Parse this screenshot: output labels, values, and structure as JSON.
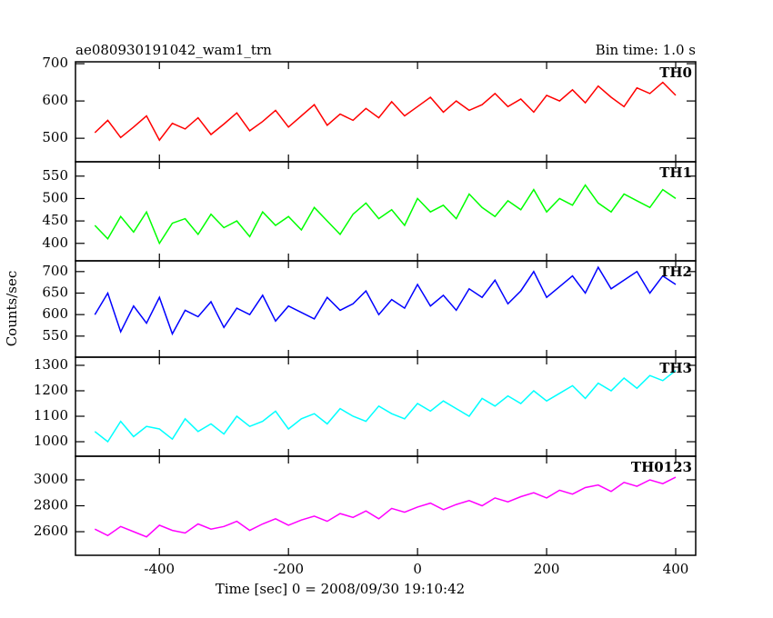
{
  "chart_data": [
    {
      "type": "line",
      "title": "ae080930191042_wam1_trn",
      "subtitle": "Bin time: 1.0 s",
      "xlim": [
        -530,
        431
      ],
      "ylim": [
        437,
        705
      ],
      "yticks": [
        500,
        600,
        700
      ],
      "x": [
        -500,
        -480,
        -460,
        -440,
        -420,
        -400,
        -380,
        -360,
        -340,
        -320,
        -300,
        -280,
        -260,
        -240,
        -220,
        -200,
        -180,
        -160,
        -140,
        -120,
        -100,
        -80,
        -60,
        -40,
        -20,
        0,
        20,
        40,
        60,
        80,
        100,
        120,
        140,
        160,
        180,
        200,
        220,
        240,
        260,
        280,
        300,
        320,
        340,
        360,
        380,
        400
      ],
      "series": [
        {
          "name": "TH0",
          "color": "#ff0000",
          "values": [
            515,
            548,
            502,
            530,
            560,
            495,
            540,
            525,
            555,
            510,
            538,
            568,
            520,
            545,
            575,
            530,
            560,
            590,
            535,
            565,
            548,
            580,
            555,
            598,
            560,
            585,
            610,
            570,
            600,
            575,
            590,
            620,
            585,
            605,
            570,
            615,
            600,
            630,
            595,
            640,
            610,
            585,
            635,
            620,
            650,
            615
          ]
        }
      ]
    },
    {
      "type": "line",
      "xlim": [
        -530,
        431
      ],
      "ylim": [
        361,
        582
      ],
      "yticks": [
        400,
        450,
        500,
        550
      ],
      "x": [
        -500,
        -480,
        -460,
        -440,
        -420,
        -400,
        -380,
        -360,
        -340,
        -320,
        -300,
        -280,
        -260,
        -240,
        -220,
        -200,
        -180,
        -160,
        -140,
        -120,
        -100,
        -80,
        -60,
        -40,
        -20,
        0,
        20,
        40,
        60,
        80,
        100,
        120,
        140,
        160,
        180,
        200,
        220,
        240,
        260,
        280,
        300,
        320,
        340,
        360,
        380,
        400
      ],
      "series": [
        {
          "name": "TH1",
          "color": "#00ff00",
          "values": [
            440,
            410,
            460,
            425,
            470,
            400,
            445,
            455,
            420,
            465,
            435,
            450,
            415,
            470,
            440,
            460,
            430,
            480,
            450,
            420,
            465,
            490,
            455,
            475,
            440,
            500,
            470,
            485,
            455,
            510,
            480,
            460,
            495,
            475,
            520,
            470,
            500,
            485,
            530,
            490,
            470,
            510,
            495,
            480,
            520,
            500
          ]
        }
      ]
    },
    {
      "type": "line",
      "ylabel": "Counts/sec",
      "xlim": [
        -530,
        431
      ],
      "ylim": [
        501,
        725
      ],
      "yticks": [
        550,
        600,
        650,
        700
      ],
      "x": [
        -500,
        -480,
        -460,
        -440,
        -420,
        -400,
        -380,
        -360,
        -340,
        -320,
        -300,
        -280,
        -260,
        -240,
        -220,
        -200,
        -180,
        -160,
        -140,
        -120,
        -100,
        -80,
        -60,
        -40,
        -20,
        0,
        20,
        40,
        60,
        80,
        100,
        120,
        140,
        160,
        180,
        200,
        220,
        240,
        260,
        280,
        300,
        320,
        340,
        360,
        380,
        400
      ],
      "series": [
        {
          "name": "TH2",
          "color": "#0000ff",
          "values": [
            600,
            650,
            560,
            620,
            580,
            640,
            555,
            610,
            595,
            630,
            570,
            615,
            600,
            645,
            585,
            620,
            605,
            590,
            640,
            610,
            625,
            655,
            600,
            635,
            615,
            670,
            620,
            645,
            610,
            660,
            640,
            680,
            625,
            655,
            700,
            640,
            665,
            690,
            650,
            710,
            660,
            680,
            700,
            650,
            690,
            670
          ]
        }
      ]
    },
    {
      "type": "line",
      "xlim": [
        -530,
        431
      ],
      "ylim": [
        943,
        1332
      ],
      "yticks": [
        1000,
        1100,
        1200,
        1300
      ],
      "x": [
        -500,
        -480,
        -460,
        -440,
        -420,
        -400,
        -380,
        -360,
        -340,
        -320,
        -300,
        -280,
        -260,
        -240,
        -220,
        -200,
        -180,
        -160,
        -140,
        -120,
        -100,
        -80,
        -60,
        -40,
        -20,
        0,
        20,
        40,
        60,
        80,
        100,
        120,
        140,
        160,
        180,
        200,
        220,
        240,
        260,
        280,
        300,
        320,
        340,
        360,
        380,
        400
      ],
      "series": [
        {
          "name": "TH3",
          "color": "#00ffff",
          "values": [
            1040,
            1000,
            1080,
            1020,
            1060,
            1050,
            1010,
            1090,
            1040,
            1070,
            1030,
            1100,
            1060,
            1080,
            1120,
            1050,
            1090,
            1110,
            1070,
            1130,
            1100,
            1080,
            1140,
            1110,
            1090,
            1150,
            1120,
            1160,
            1130,
            1100,
            1170,
            1140,
            1180,
            1150,
            1200,
            1160,
            1190,
            1220,
            1170,
            1230,
            1200,
            1250,
            1210,
            1260,
            1240,
            1280
          ]
        }
      ]
    },
    {
      "type": "line",
      "xlabel": "Time [sec] 0 = 2008/09/30 19:10:42",
      "xlim": [
        -530,
        431
      ],
      "xticks": [
        -400,
        -200,
        0,
        200,
        400
      ],
      "ylim": [
        2418,
        3182
      ],
      "yticks": [
        2600,
        2800,
        3000
      ],
      "x": [
        -500,
        -480,
        -460,
        -440,
        -420,
        -400,
        -380,
        -360,
        -340,
        -320,
        -300,
        -280,
        -260,
        -240,
        -220,
        -200,
        -180,
        -160,
        -140,
        -120,
        -100,
        -80,
        -60,
        -40,
        -20,
        0,
        20,
        40,
        60,
        80,
        100,
        120,
        140,
        160,
        180,
        200,
        220,
        240,
        260,
        280,
        300,
        320,
        340,
        360,
        380,
        400
      ],
      "series": [
        {
          "name": "TH0123",
          "color": "#ff00ff",
          "values": [
            2620,
            2570,
            2640,
            2600,
            2560,
            2650,
            2610,
            2590,
            2660,
            2620,
            2640,
            2680,
            2610,
            2660,
            2700,
            2650,
            2690,
            2720,
            2680,
            2740,
            2710,
            2760,
            2700,
            2780,
            2750,
            2790,
            2820,
            2770,
            2810,
            2840,
            2800,
            2860,
            2830,
            2870,
            2900,
            2860,
            2920,
            2890,
            2940,
            2960,
            2910,
            2980,
            2950,
            3000,
            2970,
            3020
          ]
        }
      ]
    }
  ]
}
